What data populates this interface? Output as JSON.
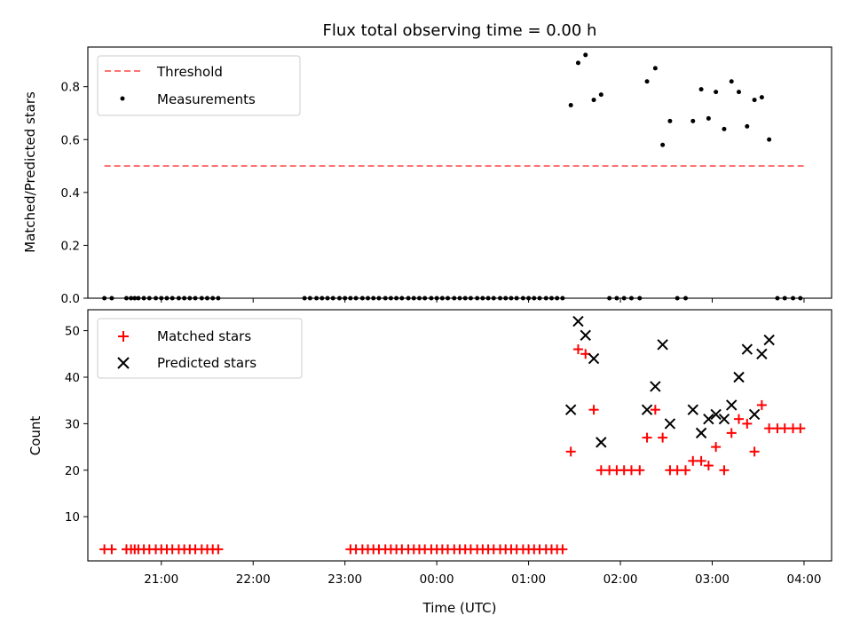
{
  "chart_data": [
    {
      "type": "scatter",
      "title": "Flux total observing time = 0.00 h",
      "ylabel": "Matched/Predicted stars",
      "xlabel": "",
      "x_unit": "hours since 20:00 UTC",
      "xlim": [
        0.2,
        8.3
      ],
      "ylim": [
        0,
        0.95
      ],
      "yticks": [
        0.0,
        0.2,
        0.4,
        0.6,
        0.8
      ],
      "ytick_labels": [
        "0.0",
        "0.2",
        "0.4",
        "0.6",
        "0.8"
      ],
      "legend_position": "upper-left",
      "threshold": {
        "name": "Threshold",
        "value": 0.5,
        "x_range": [
          0.38,
          8.0
        ],
        "color": "#ff7373",
        "style": "dashed"
      },
      "series": [
        {
          "name": "Measurements",
          "color": "#000000",
          "marker": "dot",
          "x": [
            0.38,
            0.46,
            0.62,
            0.67,
            0.71,
            0.75,
            0.81,
            0.87,
            0.94,
            1.0,
            1.06,
            1.12,
            1.19,
            1.25,
            1.31,
            1.37,
            1.44,
            1.5,
            1.56,
            1.62,
            2.56,
            2.62,
            2.69,
            2.75,
            2.81,
            2.87,
            2.94,
            3.0,
            3.06,
            3.12,
            3.19,
            3.25,
            3.31,
            3.37,
            3.44,
            3.5,
            3.56,
            3.62,
            3.69,
            3.75,
            3.81,
            3.87,
            3.94,
            4.0,
            4.06,
            4.12,
            4.19,
            4.25,
            4.31,
            4.37,
            4.44,
            4.5,
            4.56,
            4.62,
            4.69,
            4.75,
            4.81,
            4.87,
            4.94,
            5.0,
            5.06,
            5.12,
            5.19,
            5.25,
            5.31,
            5.37,
            5.46,
            5.54,
            5.62,
            5.71,
            5.79,
            5.88,
            5.96,
            6.04,
            6.12,
            6.21,
            6.29,
            6.38,
            6.46,
            6.54,
            6.62,
            6.71,
            6.79,
            6.88,
            6.96,
            7.04,
            7.13,
            7.21,
            7.29,
            7.38,
            7.46,
            7.54,
            7.62,
            7.71,
            7.79,
            7.88,
            7.96
          ],
          "y": [
            0,
            0,
            0,
            0,
            0,
            0,
            0,
            0,
            0,
            0,
            0,
            0,
            0,
            0,
            0,
            0,
            0,
            0,
            0,
            0,
            0,
            0,
            0,
            0,
            0,
            0,
            0,
            0,
            0,
            0,
            0,
            0,
            0,
            0,
            0,
            0,
            0,
            0,
            0,
            0,
            0,
            0,
            0,
            0,
            0,
            0,
            0,
            0,
            0,
            0,
            0,
            0,
            0,
            0,
            0,
            0,
            0,
            0,
            0,
            0,
            0,
            0,
            0,
            0,
            0,
            0,
            0.73,
            0.89,
            0.92,
            0.75,
            0.77,
            0,
            0,
            0,
            0,
            0,
            0.82,
            0.87,
            0.58,
            0.67,
            0,
            0,
            0.67,
            0.79,
            0.68,
            0.78,
            0.64,
            0.82,
            0.78,
            0.65,
            0.75,
            0.76,
            0.6,
            0,
            0,
            0,
            0
          ]
        }
      ]
    },
    {
      "type": "scatter",
      "title": "",
      "ylabel": "Count",
      "xlabel": "Time (UTC)",
      "x_unit": "hours since 20:00 UTC",
      "xlim": [
        0.2,
        8.3
      ],
      "ylim": [
        0.5,
        54.5
      ],
      "yticks": [
        10,
        20,
        30,
        40,
        50
      ],
      "ytick_labels": [
        "10",
        "20",
        "30",
        "40",
        "50"
      ],
      "xticks": [
        1,
        2,
        3,
        4,
        5,
        6,
        7,
        8
      ],
      "xtick_labels": [
        "21:00",
        "22:00",
        "23:00",
        "00:00",
        "01:00",
        "02:00",
        "03:00",
        "04:00"
      ],
      "legend_position": "upper-left",
      "series": [
        {
          "name": "Matched stars",
          "color": "#ff0000",
          "marker": "plus",
          "x": [
            0.38,
            0.46,
            0.62,
            0.67,
            0.71,
            0.75,
            0.81,
            0.87,
            0.94,
            1.0,
            1.06,
            1.12,
            1.19,
            1.25,
            1.31,
            1.37,
            1.44,
            1.5,
            1.56,
            1.62,
            3.06,
            3.12,
            3.19,
            3.25,
            3.31,
            3.37,
            3.44,
            3.5,
            3.56,
            3.62,
            3.69,
            3.75,
            3.81,
            3.87,
            3.94,
            4.0,
            4.06,
            4.12,
            4.19,
            4.25,
            4.31,
            4.37,
            4.44,
            4.5,
            4.56,
            4.62,
            4.69,
            4.75,
            4.81,
            4.87,
            4.94,
            5.0,
            5.06,
            5.12,
            5.19,
            5.25,
            5.31,
            5.37,
            5.46,
            5.54,
            5.62,
            5.71,
            5.79,
            5.88,
            5.96,
            6.04,
            6.12,
            6.21,
            6.29,
            6.38,
            6.46,
            6.54,
            6.62,
            6.71,
            6.79,
            6.88,
            6.96,
            7.04,
            7.13,
            7.21,
            7.29,
            7.38,
            7.46,
            7.54,
            7.62,
            7.71,
            7.79,
            7.88,
            7.96
          ],
          "y": [
            3,
            3,
            3,
            3,
            3,
            3,
            3,
            3,
            3,
            3,
            3,
            3,
            3,
            3,
            3,
            3,
            3,
            3,
            3,
            3,
            3,
            3,
            3,
            3,
            3,
            3,
            3,
            3,
            3,
            3,
            3,
            3,
            3,
            3,
            3,
            3,
            3,
            3,
            3,
            3,
            3,
            3,
            3,
            3,
            3,
            3,
            3,
            3,
            3,
            3,
            3,
            3,
            3,
            3,
            3,
            3,
            3,
            3,
            24,
            46,
            45,
            33,
            20,
            20,
            20,
            20,
            20,
            20,
            27,
            33,
            27,
            20,
            20,
            20,
            22,
            22,
            21,
            25,
            20,
            28,
            31,
            30,
            24,
            34,
            29,
            29,
            29,
            29,
            29
          ]
        },
        {
          "name": "Predicted stars",
          "color": "#000000",
          "marker": "x",
          "x": [
            5.46,
            5.54,
            5.62,
            5.71,
            5.79,
            6.29,
            6.38,
            6.46,
            6.54,
            6.79,
            6.88,
            6.96,
            7.04,
            7.13,
            7.21,
            7.29,
            7.38,
            7.46,
            7.54,
            7.62
          ],
          "y": [
            33,
            52,
            49,
            44,
            26,
            33,
            38,
            47,
            30,
            33,
            28,
            31,
            32,
            31,
            34,
            40,
            46,
            32,
            45,
            48
          ]
        }
      ]
    }
  ]
}
